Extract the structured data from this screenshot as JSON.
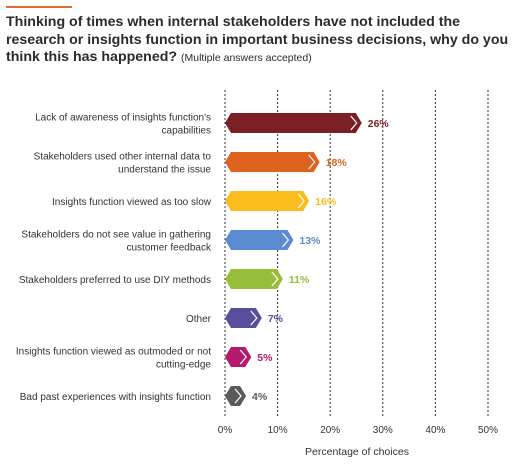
{
  "title": {
    "main": "Thinking of times when internal stakeholders have not included the research or insights function in important business decisions, why do you think this has happened?",
    "note": "(Multiple answers accepted)"
  },
  "chart_data": {
    "type": "bar",
    "orientation": "horizontal",
    "title": "Thinking of times when internal stakeholders have not included the research or insights function in important business decisions, why do you think this has happened?",
    "subtitle": "(Multiple answers accepted)",
    "xlabel": "Percentage of choices",
    "ylabel": "",
    "xlim": [
      0,
      50
    ],
    "xticks": [
      "0%",
      "10%",
      "20%",
      "30%",
      "40%",
      "50%"
    ],
    "grid": "vertical dashed",
    "categories": [
      [
        "Lack of awareness of insights function's",
        "capabilities"
      ],
      [
        "Stakeholders used other internal data to",
        "understand the issue"
      ],
      [
        "Insights function viewed as too slow"
      ],
      [
        "Stakeholders do not see value in gathering",
        "customer feedback"
      ],
      [
        "Stakeholders preferred to use DIY methods"
      ],
      [
        "Other"
      ],
      [
        "Insights function viewed as outmoded or not",
        "cutting-edge"
      ],
      [
        "Bad past experiences with insights function"
      ]
    ],
    "values": [
      26,
      18,
      16,
      13,
      11,
      7,
      5,
      4
    ],
    "labels": [
      "26%",
      "18%",
      "16%",
      "13%",
      "11%",
      "7%",
      "5%",
      "4%"
    ],
    "colors": [
      "#7b1f24",
      "#e0621f",
      "#fbbc1e",
      "#5b8bd0",
      "#97bd3b",
      "#574f9c",
      "#b5196b",
      "#5a5a5a"
    ]
  }
}
